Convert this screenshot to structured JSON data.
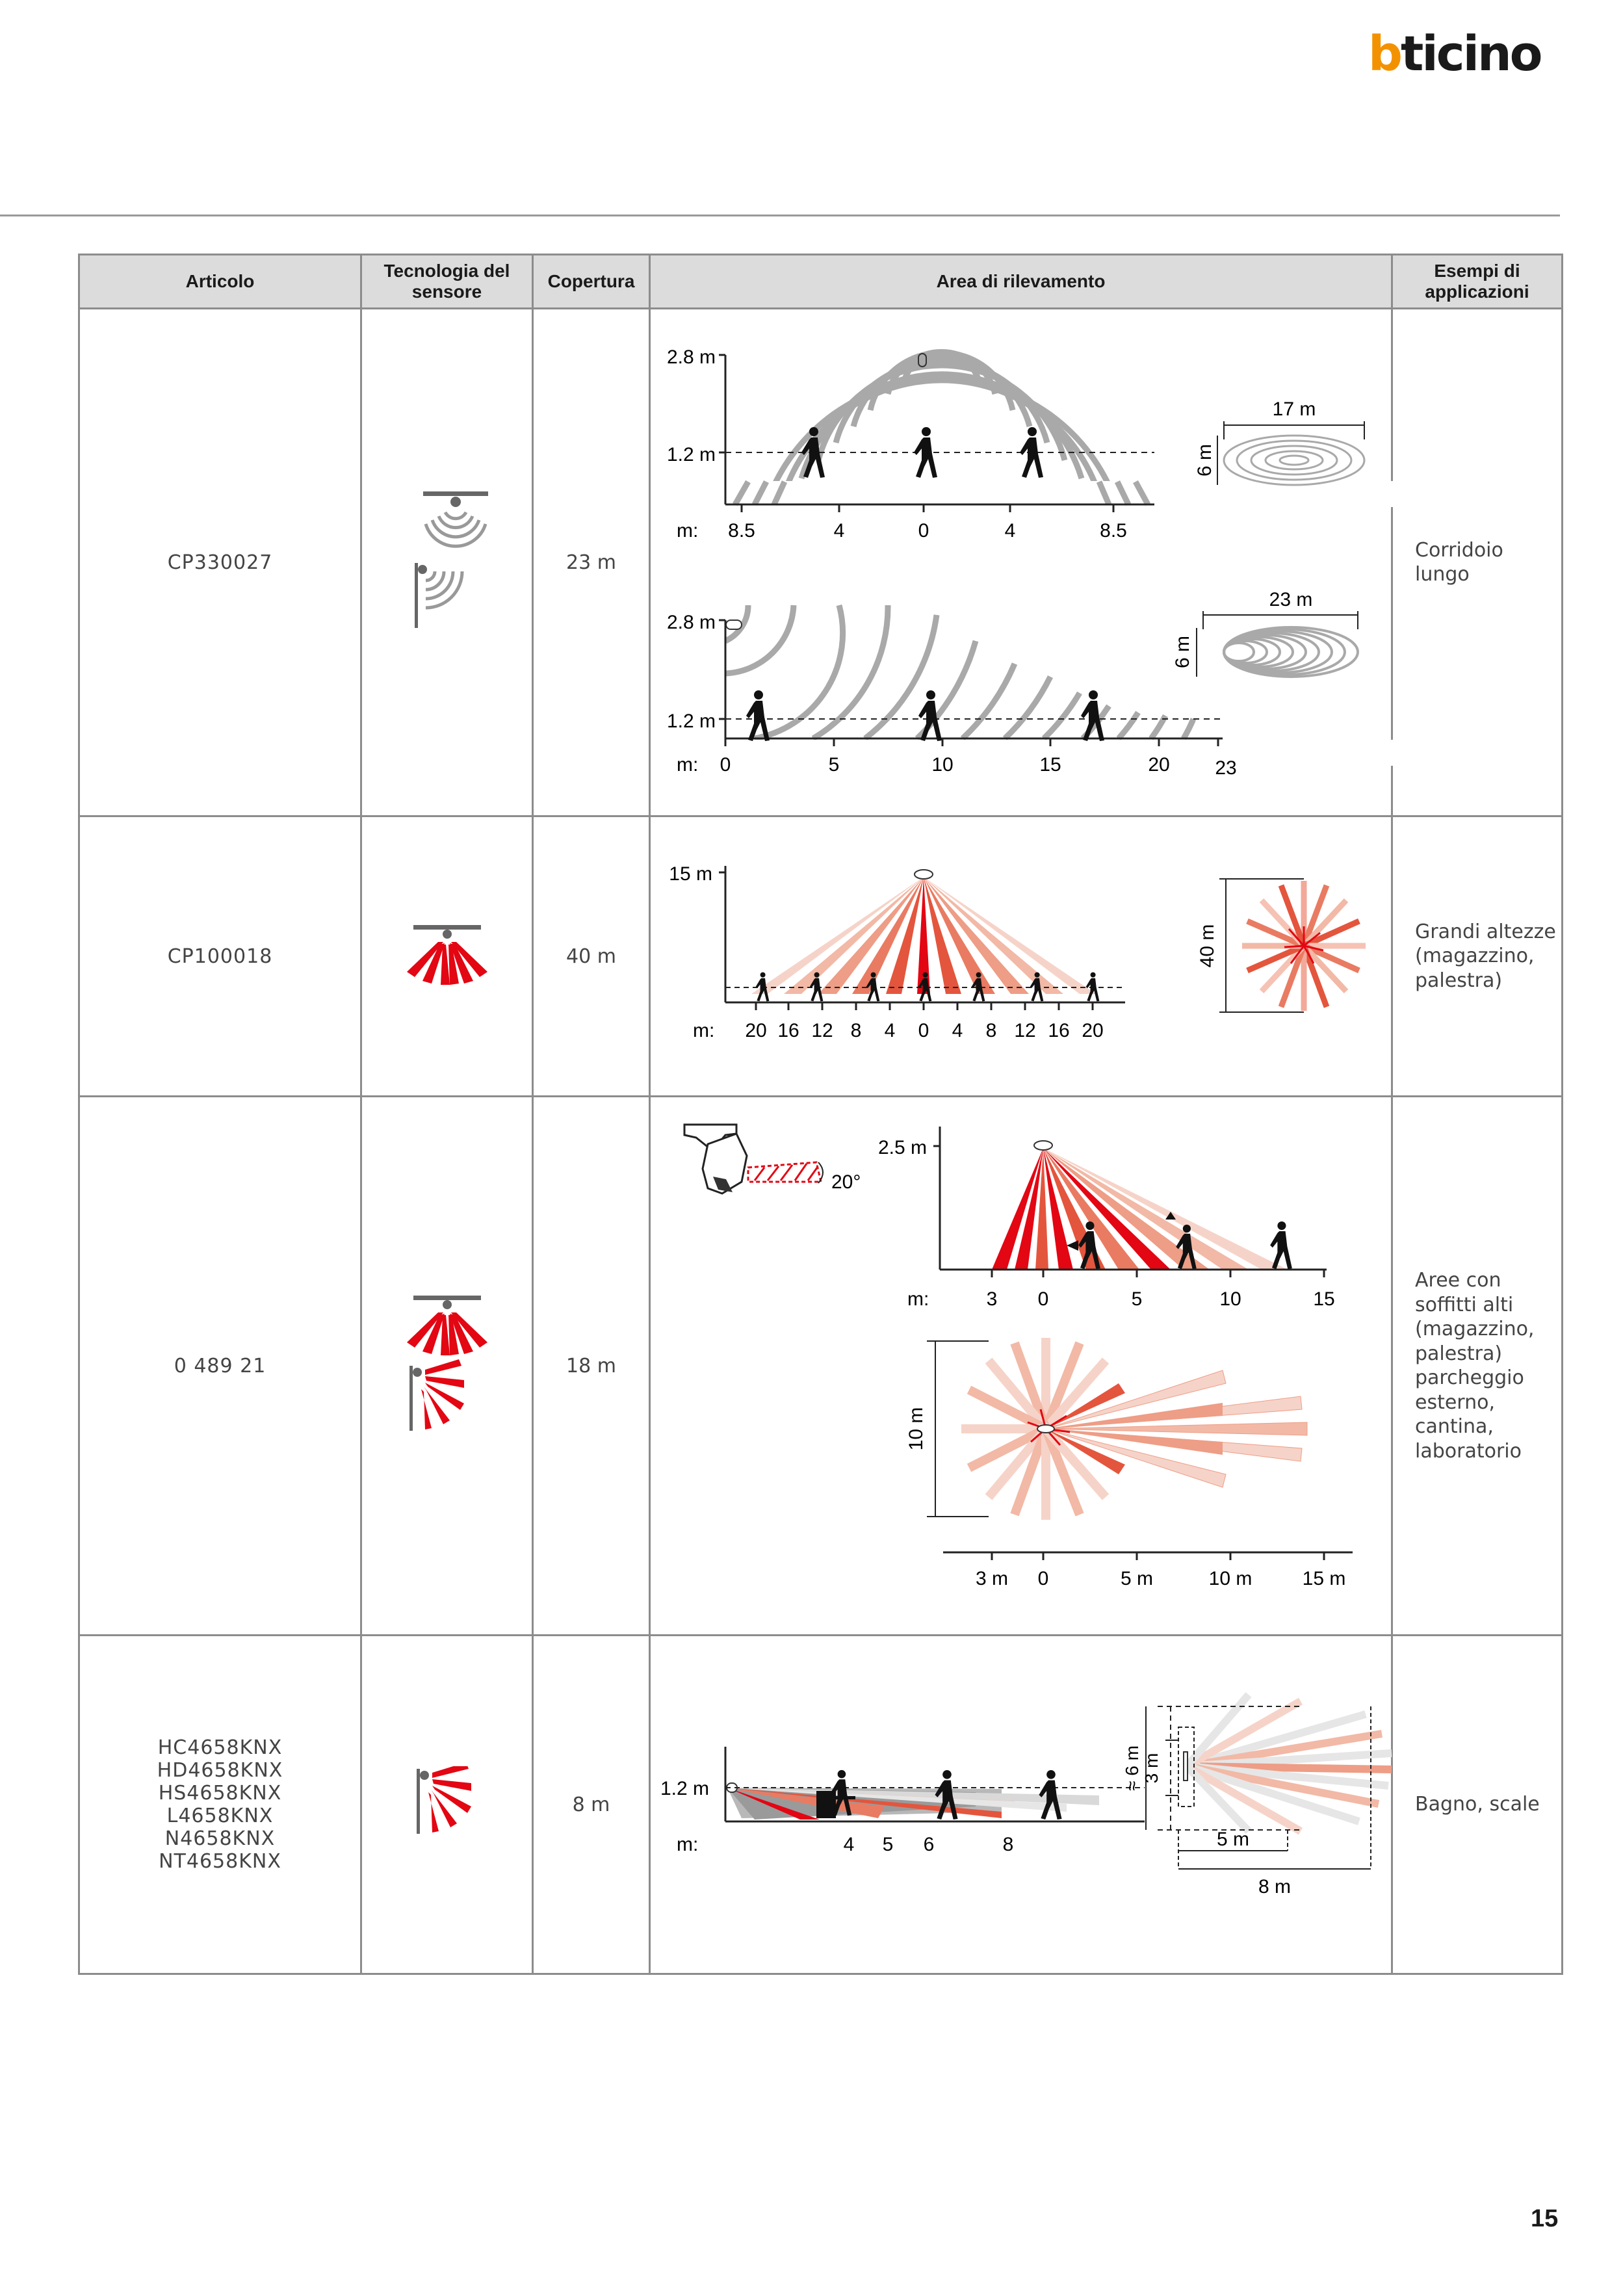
{
  "brand": {
    "logo": "bticino",
    "b": "b",
    "rest": "ticino"
  },
  "page_number": "15",
  "table": {
    "headers": [
      "Articolo",
      "Tecnologia del sensore",
      "Copertura",
      "Area di rilevamento",
      "Esempi di applicazioni"
    ],
    "rows": [
      {
        "article": "CP330027",
        "coverage": "23 m",
        "application": "Corridoio lungo",
        "diagram": {
          "top": {
            "h1": "2.8 m",
            "h2": "1.2 m",
            "axis_prefix": "m:",
            "ticks": [
              "8.5",
              "4",
              "0",
              "4",
              "8.5"
            ],
            "width": "17 m",
            "depth": "6 m"
          },
          "bottom": {
            "h1": "2.8 m",
            "h2": "1.2 m",
            "axis_prefix": "m:",
            "ticks": [
              "0",
              "5",
              "10",
              "15",
              "20",
              "23"
            ],
            "width": "23 m",
            "depth": "6 m"
          }
        }
      },
      {
        "article": "CP100018",
        "coverage": "40 m",
        "application": "Grandi altezze (magazzino, palestra)",
        "diagram": {
          "h1": "15 m",
          "axis_prefix": "m:",
          "ticks": [
            "20",
            "16",
            "12",
            "8",
            "4",
            "0",
            "4",
            "8",
            "12",
            "16",
            "20"
          ],
          "diameter": "40 m"
        }
      },
      {
        "article": "0 489 21",
        "coverage": "18 m",
        "application": "Aree con soffitti alti (magazzino, palestra) parcheggio esterno, cantina, laboratorio",
        "diagram": {
          "angle": "20°",
          "h1": "2.5 m",
          "axis_prefix": "m:",
          "ticks": [
            "3",
            "0",
            "5",
            "10",
            "15"
          ],
          "depth": "10 m",
          "bottom_ticks": [
            "3 m",
            "0",
            "5 m",
            "10 m",
            "15 m"
          ]
        }
      },
      {
        "articles": [
          "HC4658KNX",
          "HD4658KNX",
          "HS4658KNX",
          "L4658KNX",
          "N4658KNX",
          "NT4658KNX"
        ],
        "coverage": "8 m",
        "application": "Bagno, scale",
        "diagram": {
          "h1": "1.2 m",
          "axis_prefix": "m:",
          "ticks": [
            "4",
            "5",
            "6",
            "8"
          ],
          "approx_depth": "≈ 6 m",
          "inner_depth": "3 m",
          "inner_width": "5 m",
          "outer_width": "8 m"
        }
      }
    ]
  },
  "colors": {
    "accent": "#e30613",
    "logo_orange": "#f39200",
    "grey_wave": "#a9a9a9"
  }
}
